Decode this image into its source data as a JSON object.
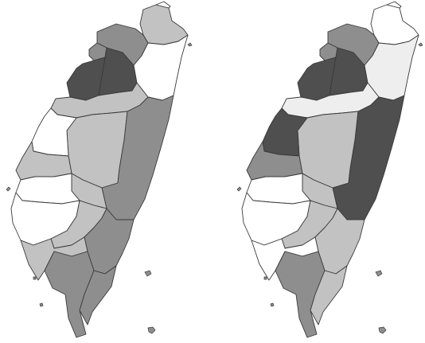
{
  "figure": {
    "kind": "side-by-side choropleth maps of Taiwan",
    "text_labels": "none",
    "maps": [
      {
        "id": "left-map",
        "regions": [
          {
            "name": "taipei-area",
            "shade": "light"
          },
          {
            "name": "keelung-coast",
            "shade": "white"
          },
          {
            "name": "new-taipei",
            "shade": "medium"
          },
          {
            "name": "taoyuan-north",
            "shade": "medium"
          },
          {
            "name": "taoyuan-core",
            "shade": "dark"
          },
          {
            "name": "hsinchu-core",
            "shade": "dark"
          },
          {
            "name": "yilan",
            "shade": "white"
          },
          {
            "name": "miaoli",
            "shade": "light"
          },
          {
            "name": "taichung",
            "shade": "light"
          },
          {
            "name": "hualien",
            "shade": "medium"
          },
          {
            "name": "changhua",
            "shade": "white"
          },
          {
            "name": "yunlin",
            "shade": "light"
          },
          {
            "name": "nantou",
            "shade": "light"
          },
          {
            "name": "chiayi",
            "shade": "white"
          },
          {
            "name": "tainan",
            "shade": "white"
          },
          {
            "name": "kaohsiung-north",
            "shade": "light"
          },
          {
            "name": "taitung-north",
            "shade": "medium"
          },
          {
            "name": "kaohsiung-south",
            "shade": "light"
          },
          {
            "name": "pingtung",
            "shade": "medium"
          },
          {
            "name": "taitung-south",
            "shade": "medium"
          }
        ]
      },
      {
        "id": "right-map",
        "regions": [
          {
            "name": "taipei-area",
            "shade": "white"
          },
          {
            "name": "keelung-coast",
            "shade": "white"
          },
          {
            "name": "new-taipei",
            "shade": "medium"
          },
          {
            "name": "taoyuan-north",
            "shade": "medium"
          },
          {
            "name": "taoyuan-core",
            "shade": "dark"
          },
          {
            "name": "hsinchu-core",
            "shade": "dark"
          },
          {
            "name": "yilan",
            "shade": "lightest"
          },
          {
            "name": "miaoli",
            "shade": "lightest"
          },
          {
            "name": "taichung",
            "shade": "light"
          },
          {
            "name": "hualien",
            "shade": "dark"
          },
          {
            "name": "changhua",
            "shade": "dark"
          },
          {
            "name": "yunlin",
            "shade": "medium"
          },
          {
            "name": "nantou",
            "shade": "light"
          },
          {
            "name": "chiayi",
            "shade": "white"
          },
          {
            "name": "tainan",
            "shade": "white"
          },
          {
            "name": "kaohsiung-north",
            "shade": "light"
          },
          {
            "name": "taitung-north",
            "shade": "light"
          },
          {
            "name": "kaohsiung-south",
            "shade": "white"
          },
          {
            "name": "pingtung",
            "shade": "medium"
          },
          {
            "name": "taitung-south",
            "shade": "light"
          }
        ]
      }
    ]
  },
  "palette": {
    "white": "#ffffff",
    "lightest": "#eeeeee",
    "light": "#c2c2c2",
    "medium": "#8e8e8e",
    "dark": "#4f4f4f",
    "stroke": "#3a3a3a"
  }
}
